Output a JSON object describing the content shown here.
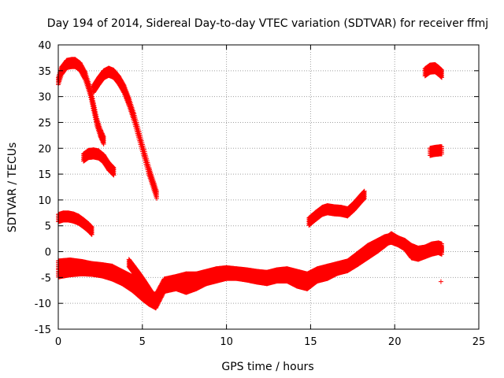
{
  "chart_data": {
    "type": "scatter",
    "title": "Day 194 of 2014, Sidereal Day-to-day VTEC variation (SDTVAR) for receiver ffmj",
    "xlabel": "GPS time / hours",
    "ylabel": "SDTVAR / TECUs",
    "xlim": [
      0,
      25
    ],
    "ylim": [
      -15,
      40
    ],
    "xticks": [
      0,
      5,
      10,
      15,
      20,
      25
    ],
    "yticks": [
      -15,
      -10,
      -5,
      0,
      5,
      10,
      15,
      20,
      25,
      30,
      35,
      40
    ],
    "grid": true,
    "marker": "+",
    "color": "#ff0000",
    "series": [
      {
        "name": "arc1",
        "x": [
          0.0,
          0.2,
          0.5,
          0.8,
          1.0,
          1.3,
          1.6,
          1.9,
          2.1,
          2.3,
          2.5,
          2.7
        ],
        "y": [
          33,
          35,
          36.3,
          36.5,
          36.5,
          35.8,
          34,
          31,
          28,
          25,
          23,
          21.5
        ]
      },
      {
        "name": "arc2",
        "x": [
          2.1,
          2.4,
          2.7,
          3.0,
          3.3,
          3.6,
          3.9,
          4.2,
          4.5,
          4.8,
          5.1,
          5.4,
          5.7,
          5.85
        ],
        "y": [
          31.5,
          33,
          34.3,
          34.8,
          34.4,
          33.2,
          31.5,
          29,
          26,
          22.5,
          19,
          15.5,
          12.5,
          11
        ]
      },
      {
        "name": "arc3",
        "x": [
          1.5,
          1.8,
          2.1,
          2.4,
          2.7,
          3.0,
          3.3
        ],
        "y": [
          18.2,
          18.9,
          19,
          18.8,
          18,
          16.5,
          15.5
        ]
      },
      {
        "name": "arc4",
        "x": [
          0.0,
          0.3,
          0.6,
          0.9,
          1.2,
          1.5,
          1.8,
          2.0
        ],
        "y": [
          6.5,
          6.8,
          6.8,
          6.6,
          6.2,
          5.5,
          4.7,
          4.0
        ]
      },
      {
        "name": "arc5",
        "x": [
          14.9,
          15.3,
          15.7,
          16.0,
          16.4,
          16.8,
          17.2,
          17.6,
          18.0,
          18.2
        ],
        "y": [
          5.8,
          6.9,
          7.9,
          8.2,
          8.0,
          7.9,
          7.6,
          8.8,
          10.3,
          11
        ]
      },
      {
        "name": "arc6",
        "x": [
          21.8,
          22.1,
          22.4,
          22.6,
          22.8
        ],
        "y": [
          34.7,
          35.4,
          35.5,
          35.0,
          34.4
        ]
      },
      {
        "name": "arc7",
        "x": [
          22.1,
          22.4,
          22.7,
          22.8
        ],
        "y": [
          19.3,
          19.5,
          19.6,
          19.6
        ]
      },
      {
        "name": "band1",
        "x": [
          0,
          0.7,
          1.4,
          2.0,
          2.6,
          3.2,
          3.8,
          4.4,
          5.0,
          5.4,
          5.8,
          6.3,
          7.0,
          7.6,
          8.2,
          8.8,
          9.4,
          10,
          10.6,
          11.2,
          11.8,
          12.4,
          13,
          13.6,
          14.2,
          14.8,
          15.4,
          16,
          16.6,
          17.2,
          17.8,
          18.4,
          19,
          19.4,
          19.8,
          20.2,
          20.6,
          21.0,
          21.4,
          21.8,
          22.2,
          22.6,
          22.8
        ],
        "y": [
          -2.5,
          -2.3,
          -2.6,
          -3.0,
          -3.2,
          -3.5,
          -4.5,
          -5.5,
          -7.0,
          -8.5,
          -9.0,
          -6.0,
          -5.5,
          -5.0,
          -5.0,
          -4.5,
          -4.0,
          -3.8,
          -4.0,
          -4.2,
          -4.5,
          -4.7,
          -4.2,
          -4.0,
          -4.5,
          -5.0,
          -4.0,
          -3.5,
          -3.0,
          -2.5,
          -1.0,
          0.5,
          1.5,
          2.2,
          2.5,
          2.0,
          1.5,
          0.5,
          0.0,
          0.2,
          0.8,
          1.0,
          0.8
        ]
      },
      {
        "name": "band2",
        "x": [
          0,
          0.7,
          1.4,
          2.0,
          2.6,
          3.2,
          3.8,
          4.4,
          5.0,
          5.4,
          5.8,
          6.3,
          7.0,
          7.6,
          8.2,
          8.8,
          9.4,
          10,
          10.6,
          11.2,
          11.8,
          12.4,
          13,
          13.6,
          14.2,
          14.8,
          15.4,
          16,
          16.6,
          17.2,
          17.8,
          18.4,
          19,
          19.4,
          19.8,
          20.2,
          20.6,
          21.0,
          21.4,
          21.8,
          22.2,
          22.6,
          22.8
        ],
        "y": [
          -4.2,
          -3.8,
          -3.6,
          -3.7,
          -4.0,
          -4.6,
          -5.5,
          -6.8,
          -8.5,
          -9.5,
          -10.2,
          -7.0,
          -6.5,
          -7.2,
          -6.5,
          -5.5,
          -5.0,
          -4.5,
          -4.5,
          -4.8,
          -5.2,
          -5.5,
          -5.0,
          -5.0,
          -6.0,
          -6.5,
          -5.0,
          -4.5,
          -3.5,
          -3.0,
          -1.8,
          -0.5,
          0.8,
          1.8,
          2.8,
          2.0,
          1.2,
          -0.5,
          -0.8,
          -0.3,
          0.2,
          0.5,
          0.2
        ]
      },
      {
        "name": "arc8",
        "x": [
          4.2,
          4.5,
          4.8,
          5.1,
          5.3,
          5.5,
          5.7,
          5.8
        ],
        "y": [
          -2.2,
          -3.5,
          -4.8,
          -6.2,
          -7.2,
          -8.2,
          -9.2,
          -9.8
        ]
      },
      {
        "name": "outlier",
        "x": [
          22.75
        ],
        "y": [
          -5.8
        ]
      }
    ]
  }
}
